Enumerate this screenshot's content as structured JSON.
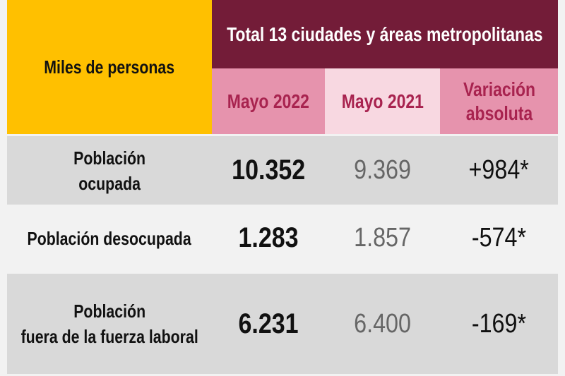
{
  "header": {
    "corner": "Miles de personas",
    "title": "Total 13 ciudades y áreas metropolitanas",
    "columns": [
      "Mayo 2022",
      "Mayo 2021",
      "Variación absoluta"
    ]
  },
  "rows": [
    {
      "label_line1": "Población",
      "label_line2": "ocupada",
      "may2022": "10.352",
      "may2021": "9.369",
      "variation": "+984*"
    },
    {
      "label_line1": "Población desocupada",
      "label_line2": "",
      "may2022": "1.283",
      "may2021": "1.857",
      "variation": "-574*"
    },
    {
      "label_line1": "Población",
      "label_line2": "fuera de la fuerza laboral",
      "may2022": "6.231",
      "may2021": "6.400",
      "variation": "-169*"
    }
  ],
  "colors": {
    "yellow": "#ffc000",
    "maroon": "#731c38",
    "pink": "#e693ad",
    "light_pink": "#f8d8e1",
    "pink_text": "#a8234f"
  }
}
